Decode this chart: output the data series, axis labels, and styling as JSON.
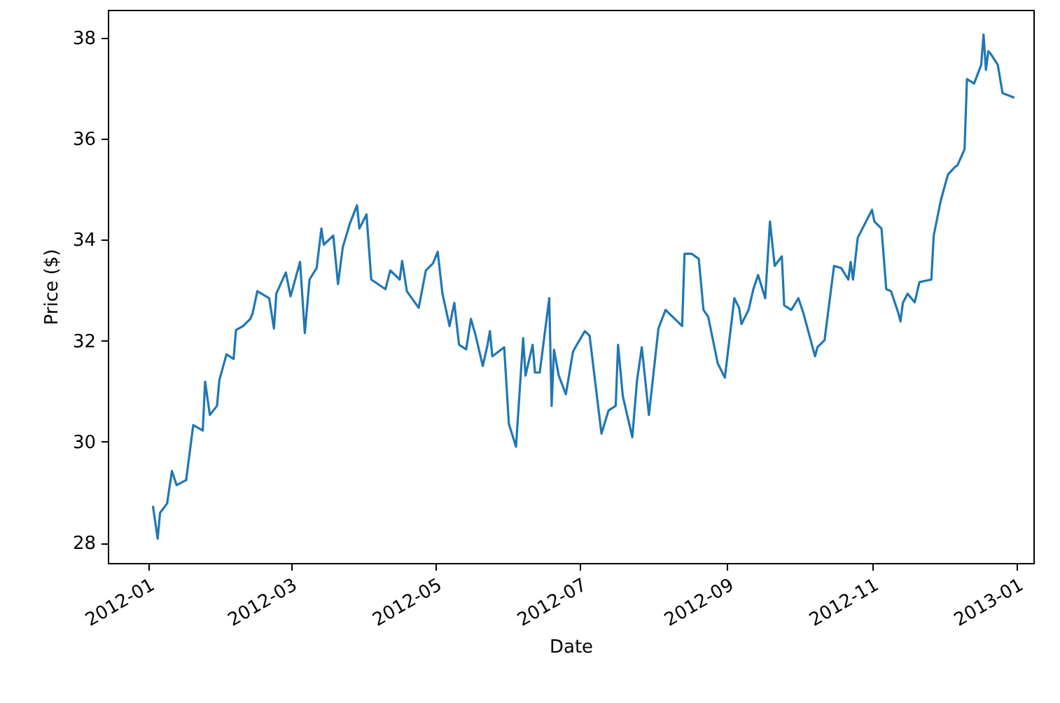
{
  "chart_data": {
    "type": "line",
    "xlabel": "Date",
    "ylabel": "Price ($)",
    "x": [
      "2012-01-03",
      "2012-01-05",
      "2012-01-06",
      "2012-01-09",
      "2012-01-11",
      "2012-01-13",
      "2012-01-17",
      "2012-01-20",
      "2012-01-24",
      "2012-01-25",
      "2012-01-27",
      "2012-01-30",
      "2012-01-31",
      "2012-02-03",
      "2012-02-06",
      "2012-02-07",
      "2012-02-10",
      "2012-02-13",
      "2012-02-14",
      "2012-02-16",
      "2012-02-21",
      "2012-02-23",
      "2012-02-24",
      "2012-02-28",
      "2012-03-01",
      "2012-03-05",
      "2012-03-07",
      "2012-03-09",
      "2012-03-12",
      "2012-03-14",
      "2012-03-15",
      "2012-03-19",
      "2012-03-21",
      "2012-03-23",
      "2012-03-26",
      "2012-03-29",
      "2012-03-30",
      "2012-04-02",
      "2012-04-04",
      "2012-04-10",
      "2012-04-12",
      "2012-04-16",
      "2012-04-17",
      "2012-04-19",
      "2012-04-24",
      "2012-04-27",
      "2012-04-30",
      "2012-05-02",
      "2012-05-04",
      "2012-05-07",
      "2012-05-09",
      "2012-05-11",
      "2012-05-14",
      "2012-05-16",
      "2012-05-18",
      "2012-05-21",
      "2012-05-23",
      "2012-05-24",
      "2012-05-25",
      "2012-05-30",
      "2012-06-01",
      "2012-06-04",
      "2012-06-07",
      "2012-06-08",
      "2012-06-11",
      "2012-06-12",
      "2012-06-14",
      "2012-06-18",
      "2012-06-19",
      "2012-06-20",
      "2012-06-22",
      "2012-06-25",
      "2012-06-28",
      "2012-06-29",
      "2012-07-03",
      "2012-07-05",
      "2012-07-10",
      "2012-07-13",
      "2012-07-16",
      "2012-07-17",
      "2012-07-19",
      "2012-07-23",
      "2012-07-25",
      "2012-07-27",
      "2012-07-30",
      "2012-08-03",
      "2012-08-06",
      "2012-08-13",
      "2012-08-14",
      "2012-08-17",
      "2012-08-20",
      "2012-08-22",
      "2012-08-24",
      "2012-08-28",
      "2012-08-31",
      "2012-09-04",
      "2012-09-06",
      "2012-09-07",
      "2012-09-10",
      "2012-09-12",
      "2012-09-14",
      "2012-09-17",
      "2012-09-19",
      "2012-09-21",
      "2012-09-24",
      "2012-09-25",
      "2012-09-28",
      "2012-10-01",
      "2012-10-03",
      "2012-10-08",
      "2012-10-09",
      "2012-10-12",
      "2012-10-16",
      "2012-10-19",
      "2012-10-22",
      "2012-10-23",
      "2012-10-24",
      "2012-10-26",
      "2012-11-01",
      "2012-11-02",
      "2012-11-05",
      "2012-11-07",
      "2012-11-09",
      "2012-11-12",
      "2012-11-13",
      "2012-11-14",
      "2012-11-16",
      "2012-11-19",
      "2012-11-21",
      "2012-11-26",
      "2012-11-27",
      "2012-11-30",
      "2012-12-03",
      "2012-12-06",
      "2012-12-07",
      "2012-12-10",
      "2012-12-11",
      "2012-12-14",
      "2012-12-17",
      "2012-12-18",
      "2012-12-19",
      "2012-12-20",
      "2012-12-21",
      "2012-12-24",
      "2012-12-26",
      "2012-12-31"
    ],
    "series": [
      {
        "color": "#1f77b4",
        "values": [
          28.73,
          28.08,
          28.59,
          28.78,
          29.42,
          29.14,
          29.24,
          30.33,
          30.22,
          31.19,
          30.53,
          30.71,
          31.22,
          31.73,
          31.64,
          32.21,
          32.29,
          32.43,
          32.54,
          32.98,
          32.84,
          32.24,
          32.93,
          33.35,
          32.88,
          33.56,
          32.15,
          33.21,
          33.44,
          34.22,
          33.9,
          34.08,
          33.12,
          33.85,
          34.32,
          34.68,
          34.22,
          34.5,
          33.21,
          33.02,
          33.39,
          33.21,
          33.58,
          32.98,
          32.65,
          33.39,
          33.53,
          33.76,
          32.93,
          32.29,
          32.75,
          31.92,
          31.83,
          32.43,
          32.1,
          31.5,
          31.92,
          32.19,
          31.69,
          31.87,
          30.35,
          29.9,
          32.05,
          31.31,
          31.92,
          31.37,
          31.37,
          32.84,
          30.71,
          31.82,
          31.31,
          30.94,
          31.78,
          31.87,
          32.19,
          32.1,
          30.16,
          30.62,
          30.71,
          31.92,
          30.9,
          30.09,
          31.22,
          31.87,
          30.53,
          32.24,
          32.61,
          32.29,
          33.72,
          33.72,
          33.62,
          32.61,
          32.47,
          31.55,
          31.27,
          32.84,
          32.65,
          32.33,
          32.61,
          33.02,
          33.3,
          32.84,
          34.36,
          33.48,
          33.67,
          32.7,
          32.61,
          32.84,
          32.56,
          31.69,
          31.87,
          32.01,
          33.48,
          33.44,
          33.21,
          33.56,
          33.21,
          34.04,
          34.59,
          34.36,
          34.22,
          33.02,
          32.98,
          32.56,
          32.38,
          32.75,
          32.93,
          32.76,
          33.16,
          33.21,
          34.08,
          34.78,
          35.29,
          35.44,
          35.47,
          35.79,
          37.18,
          37.09,
          37.46,
          38.06,
          37.36,
          37.73,
          37.68,
          37.46,
          36.9,
          36.81
        ]
      }
    ],
    "xlim": [
      "2011-12-15",
      "2013-01-08"
    ],
    "xticks": [
      "2012-01",
      "2012-03",
      "2012-05",
      "2012-07",
      "2012-09",
      "2012-11",
      "2013-01"
    ],
    "ylim": [
      27.6,
      38.55
    ],
    "yticks": [
      28,
      30,
      32,
      34,
      36,
      38
    ]
  }
}
